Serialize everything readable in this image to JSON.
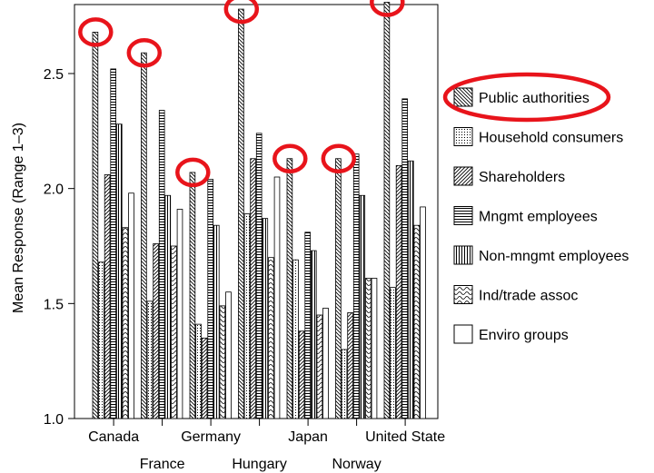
{
  "chart_data": {
    "type": "bar",
    "title": "",
    "xlabel": "",
    "ylabel": "Mean Response (Range 1–3)",
    "ylim": [
      1.0,
      2.8
    ],
    "yticks": [
      "1.0",
      "1.5",
      "2.0",
      "2.5"
    ],
    "ytick_values": [
      1.0,
      1.5,
      2.0,
      2.5
    ],
    "categories": [
      "Canada",
      "France",
      "Germany",
      "Hungary",
      "Japan",
      "Norway",
      "United State"
    ],
    "legend_position": "right",
    "series": [
      {
        "name": "Public authorities",
        "pattern": "back-diagonal",
        "values": [
          2.68,
          2.59,
          2.07,
          2.78,
          2.13,
          2.13,
          2.81
        ]
      },
      {
        "name": "Household consumers",
        "pattern": "dots",
        "values": [
          1.68,
          1.51,
          1.41,
          1.89,
          1.69,
          1.3,
          1.57
        ]
      },
      {
        "name": "Shareholders",
        "pattern": "diagonal",
        "values": [
          2.06,
          1.76,
          1.35,
          2.13,
          1.38,
          1.46,
          2.1
        ]
      },
      {
        "name": "Mngmt employees",
        "pattern": "horizontal",
        "values": [
          2.52,
          2.34,
          2.04,
          2.24,
          1.81,
          2.15,
          2.39
        ]
      },
      {
        "name": "Non-mngmt employees",
        "pattern": "vertical",
        "values": [
          2.28,
          1.97,
          1.84,
          1.87,
          1.73,
          1.97,
          2.12
        ]
      },
      {
        "name": "Ind/trade assoc",
        "pattern": "wave",
        "values": [
          1.83,
          1.75,
          1.49,
          1.7,
          1.45,
          1.61,
          1.84
        ]
      },
      {
        "name": "Enviro groups",
        "pattern": "none",
        "values": [
          1.98,
          1.91,
          1.55,
          2.05,
          1.48,
          1.61,
          1.92
        ]
      }
    ],
    "highlight_color": "#e8141b",
    "highlighted": [
      "Public authorities"
    ]
  }
}
